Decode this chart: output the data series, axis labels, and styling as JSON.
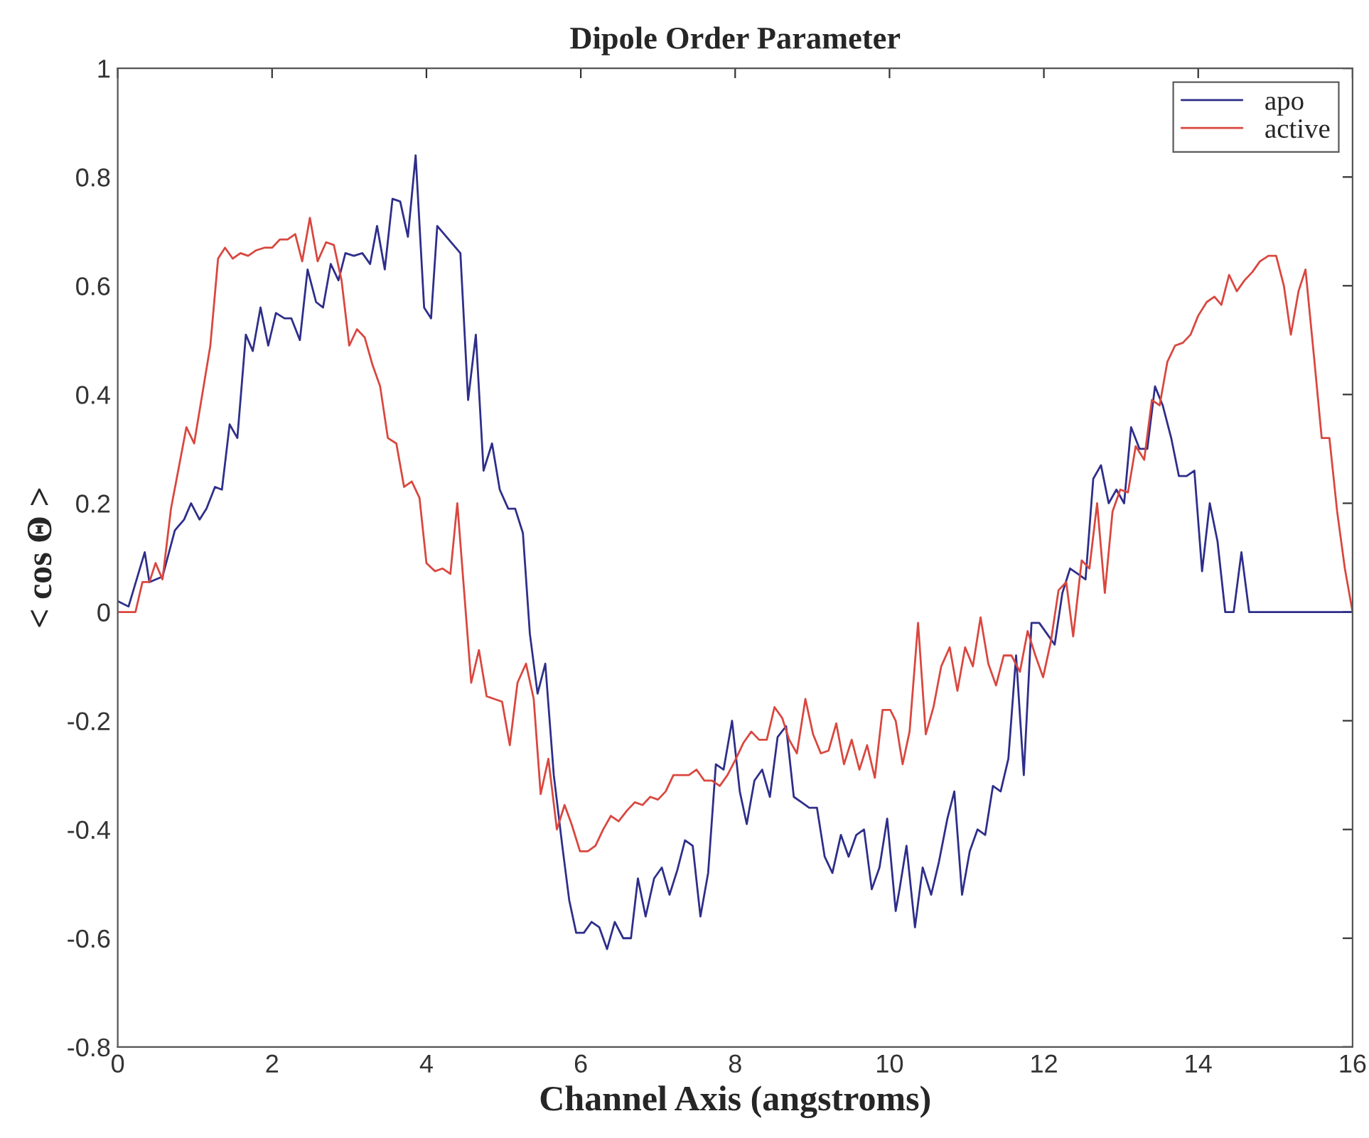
{
  "chart_data": {
    "type": "line",
    "title": "Dipole Order Parameter",
    "xlabel": "Channel Axis (angstroms)",
    "ylabel": "< cos Θ >",
    "xlim": [
      0,
      16
    ],
    "xticks": [
      0,
      2,
      4,
      6,
      8,
      10,
      12,
      14,
      16
    ],
    "ylim": [
      -0.8,
      1
    ],
    "yticks": [
      -0.8,
      -0.6,
      -0.4,
      -0.2,
      0,
      0.2,
      0.4,
      0.6,
      0.8,
      1
    ],
    "grid": false,
    "legend": "top right",
    "marker": "none",
    "line_style": "solid",
    "series": [
      {
        "name": "apo",
        "color": "#2e2e8a",
        "x": [
          0,
          0.14,
          0.35,
          0.41,
          0.58,
          0.74,
          0.86,
          0.95,
          1.06,
          1.15,
          1.26,
          1.35,
          1.45,
          1.55,
          1.66,
          1.75,
          1.85,
          1.95,
          2.05,
          2.16,
          2.25,
          2.36,
          2.46,
          2.57,
          2.66,
          2.76,
          2.86,
          2.95,
          3.06,
          3.17,
          3.27,
          3.36,
          3.46,
          3.56,
          3.66,
          3.76,
          3.86,
          3.97,
          4.06,
          4.14,
          4.44,
          4.54,
          4.64,
          4.74,
          4.85,
          4.95,
          5.06,
          5.15,
          5.25,
          5.34,
          5.44,
          5.54,
          5.65,
          5.76,
          5.85,
          5.94,
          6.04,
          6.14,
          6.24,
          6.34,
          6.44,
          6.55,
          6.65,
          6.74,
          6.84,
          6.95,
          7.05,
          7.15,
          7.25,
          7.35,
          7.45,
          7.55,
          7.65,
          7.75,
          7.85,
          7.96,
          8.06,
          8.15,
          8.25,
          8.35,
          8.45,
          8.55,
          8.66,
          8.76,
          8.86,
          8.96,
          9.06,
          9.16,
          9.26,
          9.37,
          9.47,
          9.57,
          9.67,
          9.77,
          9.87,
          9.97,
          10.08,
          10.13,
          10.22,
          10.33,
          10.43,
          10.54,
          10.64,
          10.75,
          10.84,
          10.94,
          11.04,
          11.14,
          11.24,
          11.34,
          11.44,
          11.54,
          11.64,
          11.74,
          11.84,
          11.94,
          12.04,
          12.14,
          12.24,
          12.34,
          12.44,
          12.54,
          12.64,
          12.74,
          12.84,
          12.94,
          13.04,
          13.13,
          13.24,
          13.34,
          13.44,
          13.54,
          13.65,
          13.75,
          13.85,
          13.95,
          14.05,
          14.15,
          14.25,
          14.35,
          14.46,
          14.56,
          14.66,
          16
        ],
        "values": [
          0.02,
          0.01,
          0.11,
          0.055,
          0.065,
          0.15,
          0.17,
          0.2,
          0.17,
          0.19,
          0.23,
          0.225,
          0.345,
          0.32,
          0.51,
          0.48,
          0.56,
          0.49,
          0.55,
          0.54,
          0.54,
          0.5,
          0.63,
          0.57,
          0.56,
          0.64,
          0.61,
          0.66,
          0.655,
          0.66,
          0.64,
          0.71,
          0.63,
          0.76,
          0.755,
          0.69,
          0.84,
          0.56,
          0.54,
          0.71,
          0.66,
          0.39,
          0.51,
          0.26,
          0.31,
          0.225,
          0.19,
          0.19,
          0.145,
          -0.04,
          -0.15,
          -0.095,
          -0.3,
          -0.43,
          -0.53,
          -0.59,
          -0.59,
          -0.57,
          -0.58,
          -0.62,
          -0.57,
          -0.6,
          -0.6,
          -0.49,
          -0.56,
          -0.49,
          -0.47,
          -0.52,
          -0.475,
          -0.42,
          -0.43,
          -0.56,
          -0.48,
          -0.28,
          -0.29,
          -0.2,
          -0.33,
          -0.39,
          -0.31,
          -0.29,
          -0.34,
          -0.23,
          -0.21,
          -0.34,
          -0.35,
          -0.36,
          -0.36,
          -0.45,
          -0.48,
          -0.41,
          -0.45,
          -0.41,
          -0.4,
          -0.51,
          -0.47,
          -0.38,
          -0.55,
          -0.51,
          -0.43,
          -0.58,
          -0.47,
          -0.52,
          -0.46,
          -0.38,
          -0.33,
          -0.52,
          -0.44,
          -0.4,
          -0.41,
          -0.32,
          -0.33,
          -0.27,
          -0.08,
          -0.3,
          -0.02,
          -0.02,
          -0.04,
          -0.06,
          0.035,
          0.08,
          0.07,
          0.06,
          0.245,
          0.27,
          0.2,
          0.225,
          0.2,
          0.34,
          0.3,
          0.3,
          0.415,
          0.38,
          0.32,
          0.25,
          0.25,
          0.26,
          0.075,
          0.2,
          0.13,
          0,
          0,
          0.11,
          0,
          0
        ]
      },
      {
        "name": "active",
        "color": "#d9473f",
        "x": [
          0,
          0.23,
          0.32,
          0.41,
          0.49,
          0.58,
          0.69,
          0.89,
          0.99,
          1.2,
          1.3,
          1.39,
          1.49,
          1.59,
          1.69,
          1.79,
          1.9,
          2.0,
          2.1,
          2.2,
          2.3,
          2.39,
          2.49,
          2.59,
          2.7,
          2.8,
          2.9,
          3.0,
          3.1,
          3.2,
          3.3,
          3.4,
          3.5,
          3.61,
          3.71,
          3.81,
          3.91,
          4.0,
          4.11,
          4.21,
          4.31,
          4.4,
          4.58,
          4.68,
          4.78,
          4.88,
          4.98,
          5.08,
          5.18,
          5.29,
          5.39,
          5.48,
          5.58,
          5.69,
          5.79,
          5.88,
          5.99,
          6.09,
          6.19,
          6.29,
          6.39,
          6.49,
          6.6,
          6.7,
          6.8,
          6.9,
          7.0,
          7.1,
          7.2,
          7.3,
          7.4,
          7.5,
          7.6,
          7.7,
          7.8,
          7.9,
          8.01,
          8.11,
          8.21,
          8.31,
          8.41,
          8.51,
          8.61,
          8.7,
          8.8,
          8.91,
          9.01,
          9.11,
          9.21,
          9.31,
          9.41,
          9.51,
          9.61,
          9.71,
          9.81,
          9.91,
          10.01,
          10.08,
          10.17,
          10.26,
          10.37,
          10.47,
          10.57,
          10.67,
          10.78,
          10.88,
          10.98,
          11.08,
          11.18,
          11.28,
          11.38,
          11.48,
          11.58,
          11.69,
          11.79,
          11.89,
          11.99,
          12.09,
          12.19,
          12.29,
          12.38,
          12.49,
          12.59,
          12.69,
          12.79,
          12.89,
          12.99,
          13.09,
          13.19,
          13.3,
          13.4,
          13.5,
          13.6,
          13.7,
          13.8,
          13.9,
          14.0,
          14.11,
          14.21,
          14.3,
          14.4,
          14.5,
          14.6,
          14.7,
          14.8,
          14.91,
          15.01,
          15.11,
          15.2,
          15.3,
          15.39,
          15.5,
          15.6,
          15.7,
          15.8,
          15.9,
          16.0
        ],
        "values": [
          0,
          0,
          0.055,
          0.055,
          0.09,
          0.06,
          0.19,
          0.34,
          0.31,
          0.49,
          0.65,
          0.67,
          0.65,
          0.66,
          0.655,
          0.665,
          0.67,
          0.67,
          0.685,
          0.685,
          0.695,
          0.645,
          0.725,
          0.645,
          0.68,
          0.675,
          0.61,
          0.49,
          0.52,
          0.505,
          0.455,
          0.415,
          0.32,
          0.31,
          0.23,
          0.24,
          0.21,
          0.09,
          0.075,
          0.08,
          0.07,
          0.2,
          -0.13,
          -0.07,
          -0.155,
          -0.16,
          -0.165,
          -0.245,
          -0.13,
          -0.095,
          -0.16,
          -0.335,
          -0.27,
          -0.4,
          -0.355,
          -0.39,
          -0.44,
          -0.44,
          -0.43,
          -0.4,
          -0.375,
          -0.385,
          -0.365,
          -0.35,
          -0.355,
          -0.34,
          -0.345,
          -0.33,
          -0.3,
          -0.3,
          -0.3,
          -0.29,
          -0.31,
          -0.31,
          -0.32,
          -0.3,
          -0.27,
          -0.24,
          -0.22,
          -0.235,
          -0.235,
          -0.175,
          -0.195,
          -0.235,
          -0.26,
          -0.16,
          -0.225,
          -0.26,
          -0.255,
          -0.205,
          -0.28,
          -0.235,
          -0.29,
          -0.245,
          -0.305,
          -0.18,
          -0.18,
          -0.2,
          -0.28,
          -0.22,
          -0.02,
          -0.225,
          -0.175,
          -0.1,
          -0.065,
          -0.145,
          -0.065,
          -0.1,
          -0.01,
          -0.095,
          -0.135,
          -0.08,
          -0.08,
          -0.11,
          -0.035,
          -0.08,
          -0.12,
          -0.055,
          0.04,
          0.055,
          -0.045,
          0.095,
          0.08,
          0.2,
          0.035,
          0.185,
          0.225,
          0.22,
          0.305,
          0.28,
          0.39,
          0.38,
          0.46,
          0.49,
          0.495,
          0.51,
          0.545,
          0.57,
          0.58,
          0.565,
          0.62,
          0.59,
          0.61,
          0.625,
          0.645,
          0.655,
          0.655,
          0.6,
          0.51,
          0.59,
          0.63,
          0.47,
          0.32,
          0.32,
          0.185,
          0.08,
          0
        ]
      }
    ]
  }
}
